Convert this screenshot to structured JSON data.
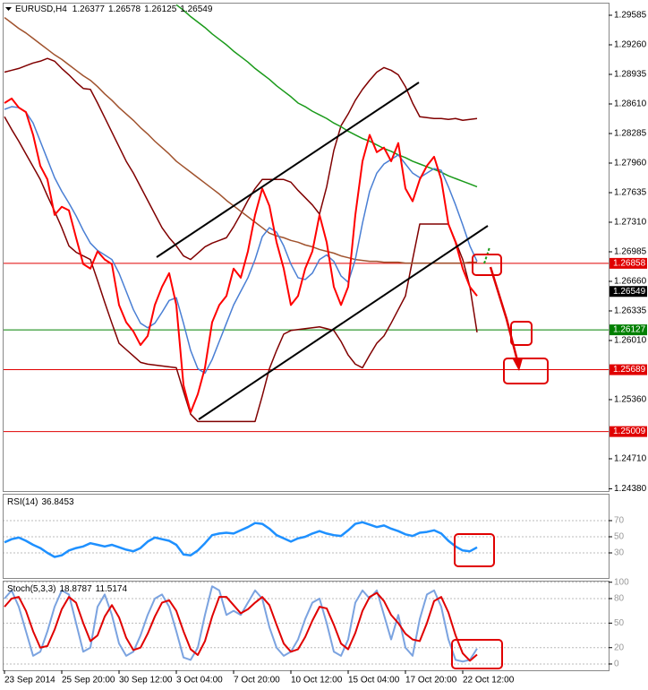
{
  "chart_data": [
    {
      "type": "line",
      "title": "EURUSD,H4",
      "ohlc": [
        1.26377,
        1.26578,
        1.26125,
        1.26549
      ],
      "categories": [
        "23 Sep 2014",
        null,
        null,
        null,
        null,
        null,
        null,
        null,
        "25 Sep 20:00",
        null,
        null,
        null,
        null,
        null,
        null,
        null,
        "30 Sep 12:00",
        null,
        null,
        null,
        null,
        null,
        null,
        null,
        "3 Oct 04:00",
        null,
        null,
        null,
        null,
        null,
        null,
        null,
        "7 Oct 20:00",
        null,
        null,
        null,
        null,
        null,
        null,
        null,
        "10 Oct 12:00",
        null,
        null,
        null,
        null,
        null,
        null,
        null,
        "15 Oct 04:00",
        null,
        null,
        null,
        null,
        null,
        null,
        null,
        "17 Oct 20:00",
        null,
        null,
        null,
        null,
        null,
        null,
        null,
        "22 Oct 12:00",
        null,
        null
      ],
      "ylim": [
        1.24355,
        1.29723
      ],
      "yticks": [
        1.29585,
        {
          "value": 1.2926,
          "label": "1.29260"
        },
        1.28935,
        {
          "value": 1.2861,
          "label": "1.28610"
        },
        1.28285,
        {
          "value": 1.2796,
          "label": "1.27960"
        },
        1.27635,
        {
          "value": 1.2731,
          "label": "1.27310"
        },
        1.26985,
        {
          "value": 1.2666,
          "label": "1.26660"
        },
        1.26335,
        {
          "value": 1.2601,
          "label": "1.26010"
        },
        {
          "value": 1.2536,
          "label": "1.25360"
        },
        {
          "value": 1.2471,
          "label": "1.24710"
        },
        {
          "value": 1.2438,
          "label": "1.24380"
        }
      ],
      "levels": [
        {
          "value": 1.26858,
          "color": "#e00000"
        },
        {
          "value": 1.26127,
          "color": "#008000"
        },
        {
          "value": 1.25689,
          "color": "#e00000"
        },
        {
          "value": 1.25009,
          "color": "#e00000"
        }
      ],
      "series": [
        {
          "color": "#800000",
          "values": [
            1.2896,
            1.2898,
            1.29,
            1.2903,
            1.2906,
            1.2908,
            1.2911,
            1.2908,
            1.29,
            1.2893,
            1.2885,
            1.2878,
            1.2877,
            1.2862,
            1.2846,
            1.283,
            1.2814,
            1.2798,
            1.2785,
            1.277,
            1.2755,
            1.274,
            1.2725,
            1.2714,
            1.2705,
            1.2694,
            1.269,
            1.2697,
            1.2704,
            1.2708,
            1.2711,
            1.2714,
            1.2726,
            1.274,
            1.2755,
            1.2768,
            1.2778,
            1.2778,
            1.2778,
            1.2778,
            1.2775,
            1.2766,
            1.2758,
            1.275,
            1.274,
            1.277,
            1.281,
            1.2837,
            1.285,
            1.2865,
            1.2877,
            1.2887,
            1.2896,
            1.2901,
            1.2898,
            1.2893,
            1.288,
            1.2862,
            1.2847,
            1.2846,
            1.2845,
            1.2845,
            1.2844,
            1.2845,
            1.2843,
            1.2844,
            1.2845
          ]
        },
        {
          "color": "#800000",
          "values": [
            1.2847,
            1.2833,
            1.282,
            1.2806,
            1.2792,
            1.2778,
            1.276,
            1.2743,
            1.2725,
            1.2705,
            1.2698,
            1.2694,
            1.269,
            1.2667,
            1.2643,
            1.262,
            1.2598,
            1.2591,
            1.2584,
            1.2577,
            1.2575,
            1.2574,
            1.2573,
            1.2572,
            1.2571,
            1.2545,
            1.252,
            1.2512,
            1.2512,
            1.2512,
            1.2512,
            1.2512,
            1.2512,
            1.2512,
            1.2512,
            1.2512,
            1.254,
            1.257,
            1.259,
            1.2608,
            1.2612,
            1.2613,
            1.2614,
            1.2615,
            1.2616,
            1.2614,
            1.2612,
            1.26,
            1.2585,
            1.2575,
            1.2571,
            1.2585,
            1.2598,
            1.2606,
            1.262,
            1.2635,
            1.265,
            1.269,
            1.2729,
            1.2729,
            1.2729,
            1.2729,
            1.2729,
            1.271,
            1.269,
            1.266,
            1.261
          ]
        },
        {
          "color": "#a0522d",
          "values": [
            1.2956,
            1.295,
            1.2944,
            1.2939,
            1.2933,
            1.2927,
            1.2921,
            1.2915,
            1.291,
            1.2904,
            1.2898,
            1.2892,
            1.2887,
            1.288,
            1.2872,
            1.2865,
            1.2857,
            1.285,
            1.2843,
            1.2835,
            1.2828,
            1.282,
            1.2813,
            1.2806,
            1.2798,
            1.2792,
            1.2786,
            1.278,
            1.2774,
            1.2768,
            1.2762,
            1.2755,
            1.2749,
            1.2743,
            1.2737,
            1.2731,
            1.2725,
            1.2719,
            1.2716,
            1.2714,
            1.2711,
            1.2709,
            1.2706,
            1.2704,
            1.2701,
            1.2699,
            1.2697,
            1.2694,
            1.2692,
            1.269,
            1.2689,
            1.2688,
            1.2688,
            1.2687,
            1.2687,
            1.2687,
            1.2686,
            1.2686,
            1.2686,
            1.2686,
            1.2686,
            1.2686,
            1.2686,
            1.2686,
            1.2686,
            1.2687,
            1.2687
          ]
        },
        {
          "color": "#1a9a1a",
          "values": [
            null,
            null,
            null,
            null,
            null,
            null,
            null,
            null,
            null,
            null,
            null,
            null,
            null,
            null,
            null,
            null,
            null,
            null,
            null,
            null,
            null,
            null,
            null,
            null,
            1.297,
            1.2964,
            1.2957,
            1.2951,
            1.2945,
            1.2938,
            1.2932,
            1.2926,
            1.2919,
            1.2913,
            1.2907,
            1.29,
            1.2894,
            1.2888,
            1.2881,
            1.2875,
            1.2869,
            1.2862,
            1.2858,
            1.2853,
            1.2849,
            1.2845,
            1.284,
            1.2836,
            1.2831,
            1.2827,
            1.2823,
            1.282,
            1.2816,
            1.2812,
            1.2809,
            1.2805,
            1.2802,
            1.2798,
            1.2795,
            1.2792,
            1.2789,
            1.2786,
            1.2782,
            1.2779,
            1.2776,
            1.2773,
            1.277
          ]
        },
        {
          "color": "#4a7fd4",
          "values": [
            1.2855,
            1.2858,
            1.2857,
            1.2852,
            1.284,
            1.282,
            1.28,
            1.278,
            1.2765,
            1.2752,
            1.2738,
            1.2722,
            1.2708,
            1.27,
            1.2695,
            1.269,
            1.2675,
            1.2655,
            1.2635,
            1.262,
            1.2615,
            1.262,
            1.2632,
            1.2645,
            1.2648,
            1.262,
            1.259,
            1.257,
            1.2565,
            1.258,
            1.26,
            1.262,
            1.264,
            1.2655,
            1.267,
            1.269,
            1.2715,
            1.2725,
            1.272,
            1.2705,
            1.2685,
            1.267,
            1.2668,
            1.2675,
            1.269,
            1.2695,
            1.2688,
            1.2672,
            1.2665,
            1.269,
            1.273,
            1.2765,
            1.2785,
            1.2795,
            1.28,
            1.2805,
            1.2795,
            1.2785,
            1.278,
            1.2785,
            1.279,
            1.2788,
            1.277,
            1.275,
            1.2728,
            1.2705,
            1.2688
          ]
        },
        {
          "color": "#ff0000",
          "values": [
            1.2862,
            1.2867,
            1.2857,
            1.2852,
            1.2827,
            1.2793,
            1.2778,
            1.2739,
            1.2748,
            1.2744,
            1.2714,
            1.2685,
            1.268,
            1.2699,
            1.269,
            1.2685,
            1.264,
            1.2621,
            1.2611,
            1.2596,
            1.2606,
            1.264,
            1.266,
            1.2675,
            1.264,
            1.2552,
            1.2522,
            1.2542,
            1.2571,
            1.2621,
            1.264,
            1.265,
            1.268,
            1.267,
            1.2699,
            1.2739,
            1.2768,
            1.2749,
            1.2709,
            1.268,
            1.264,
            1.265,
            1.268,
            1.2699,
            1.2739,
            1.2709,
            1.266,
            1.264,
            1.266,
            1.2739,
            1.2798,
            1.2827,
            1.2808,
            1.2813,
            1.2798,
            1.2818,
            1.2768,
            1.2754,
            1.2778,
            1.2793,
            1.2803,
            1.2778,
            1.2729,
            1.2709,
            1.268,
            1.266,
            1.265
          ]
        }
      ]
    },
    {
      "type": "line",
      "title": "RSI(14)",
      "readout": [
        36.8453
      ],
      "ylim": [
        -1.1,
        103.3
      ],
      "yticks": [
        70,
        50,
        30
      ],
      "series": [
        {
          "color": "#1e90ff",
          "values": [
            43,
            47,
            49,
            45,
            40,
            36,
            30,
            25,
            27,
            33,
            36,
            38,
            42,
            40,
            38,
            40,
            37,
            34,
            32,
            36,
            44,
            49,
            47,
            45,
            40,
            28,
            27,
            33,
            42,
            52,
            54,
            55,
            54,
            58,
            62,
            67,
            66,
            60,
            52,
            48,
            44,
            48,
            50,
            54,
            57,
            54,
            52,
            51,
            58,
            66,
            68,
            65,
            62,
            64,
            60,
            57,
            53,
            51,
            55,
            56,
            58,
            54,
            45,
            38,
            33,
            32,
            36.8453
          ]
        }
      ]
    },
    {
      "type": "line",
      "title": "Stoch(5,3,3)",
      "readout": [
        18.8787,
        11.5174
      ],
      "ylim": [
        -7.7,
        101.9
      ],
      "yticks": [
        100,
        80,
        50,
        20,
        0
      ],
      "series": [
        {
          "color": "#7ba3e0",
          "values": [
            80,
            90,
            70,
            40,
            10,
            15,
            40,
            70,
            90,
            85,
            50,
            15,
            20,
            70,
            85,
            60,
            25,
            10,
            15,
            35,
            60,
            80,
            85,
            70,
            40,
            8,
            5,
            20,
            60,
            95,
            90,
            60,
            65,
            60,
            75,
            90,
            80,
            45,
            20,
            10,
            15,
            30,
            55,
            75,
            80,
            50,
            15,
            10,
            30,
            75,
            90,
            80,
            90,
            60,
            30,
            60,
            20,
            10,
            55,
            85,
            90,
            70,
            30,
            5,
            3,
            5,
            18.8787
          ]
        },
        {
          "color": "#e00000",
          "values": [
            70,
            80,
            82,
            65,
            40,
            20,
            22,
            42,
            67,
            82,
            75,
            50,
            28,
            35,
            58,
            72,
            57,
            32,
            17,
            20,
            37,
            58,
            75,
            78,
            65,
            40,
            18,
            11,
            28,
            58,
            82,
            82,
            72,
            62,
            67,
            75,
            82,
            72,
            48,
            25,
            15,
            18,
            33,
            53,
            70,
            68,
            48,
            25,
            18,
            38,
            65,
            82,
            87,
            77,
            60,
            50,
            37,
            30,
            28,
            50,
            77,
            82,
            63,
            35,
            13,
            4,
            11.5174
          ]
        }
      ]
    }
  ]
}
